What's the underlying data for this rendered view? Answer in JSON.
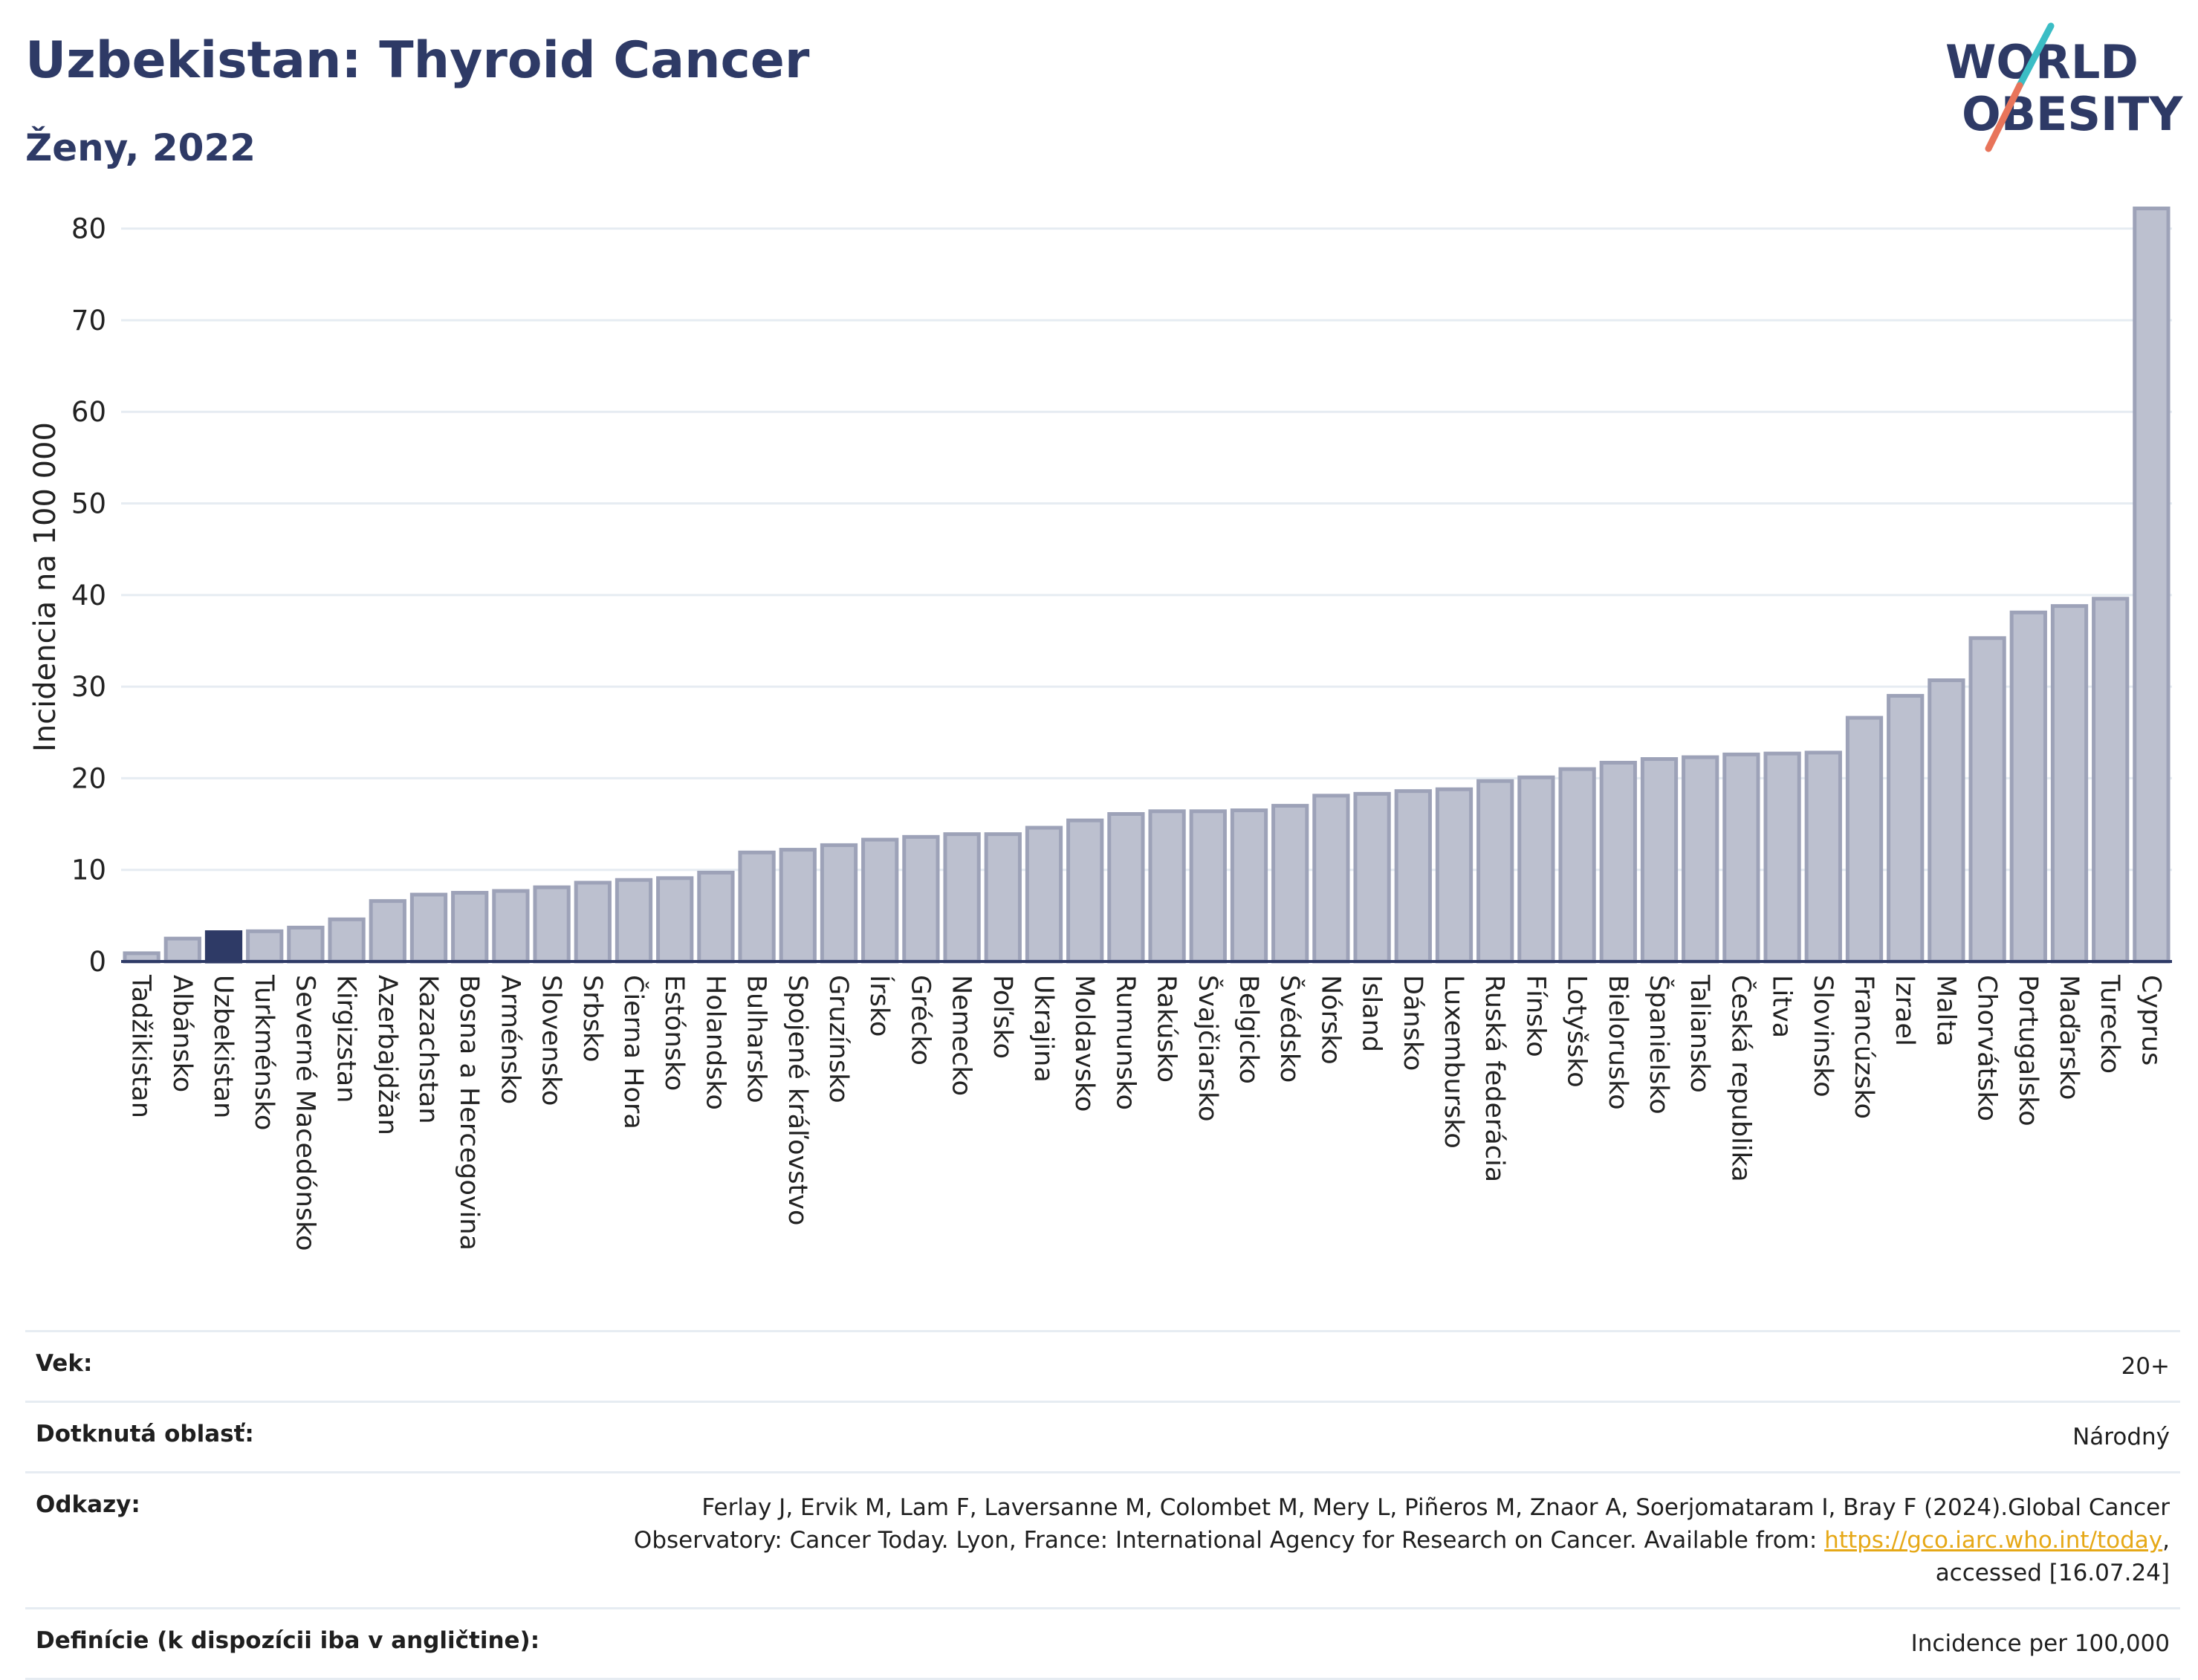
{
  "header": {
    "title": "Uzbekistan: Thyroid Cancer",
    "subtitle": "Ženy, 2022"
  },
  "logo": {
    "line1": "WORLD",
    "line2": "OBESITY"
  },
  "colors": {
    "title": "#2e3a66",
    "bar_fill": "#bcc0cf",
    "bar_stroke": "#9da2b8",
    "bar_highlight": "#2e3a66",
    "axis": "#2e3a66",
    "grid": "#e6ecf2",
    "link": "#e6a817",
    "logo_text": "#2e3a66",
    "logo_slash_teal": "#3bbdc5",
    "logo_slash_coral": "#e8745a"
  },
  "chart_data": {
    "type": "bar",
    "ylabel": "Incidencia na 100 000",
    "xlabel": "",
    "ylim": [
      0,
      85
    ],
    "yticks": [
      0,
      10,
      20,
      30,
      40,
      50,
      60,
      70,
      80
    ],
    "grid": true,
    "highlight": "Uzbekistan",
    "categories": [
      "Tadžikistan",
      "Albánsko",
      "Uzbekistan",
      "Turkménsko",
      "Severné Macedónsko",
      "Kirgizstan",
      "Azerbajdžan",
      "Kazachstan",
      "Bosna a Hercegovina",
      "Arménsko",
      "Slovensko",
      "Srbsko",
      "Čierna Hora",
      "Estónsko",
      "Holandsko",
      "Bulharsko",
      "Spojené kráľovstvo",
      "Gruzínsko",
      "Írsko",
      "Grécko",
      "Nemecko",
      "Poľsko",
      "Ukrajina",
      "Moldavsko",
      "Rumunsko",
      "Rakúsko",
      "Švajčiarsko",
      "Belgicko",
      "Švédsko",
      "Nórsko",
      "Island",
      "Dánsko",
      "Luxembursko",
      "Ruská federácia",
      "Fínsko",
      "Lotyšsko",
      "Bielorusko",
      "Španielsko",
      "Taliansko",
      "Česká republika",
      "Litva",
      "Slovinsko",
      "Francúzsko",
      "Izrael",
      "Malta",
      "Chorvátsko",
      "Portugalsko",
      "Maďarsko",
      "Turecko",
      "Cyprus"
    ],
    "values": [
      0.9,
      2.5,
      3.2,
      3.3,
      3.7,
      4.6,
      6.6,
      7.3,
      7.5,
      7.7,
      8.1,
      8.6,
      8.9,
      9.1,
      9.7,
      11.9,
      12.2,
      12.7,
      13.3,
      13.6,
      13.9,
      13.9,
      14.6,
      15.4,
      16.1,
      16.4,
      16.4,
      16.5,
      17.0,
      18.1,
      18.3,
      18.6,
      18.8,
      19.7,
      20.1,
      21.0,
      21.7,
      22.1,
      22.3,
      22.6,
      22.7,
      22.8,
      26.6,
      29.0,
      30.7,
      35.3,
      38.1,
      38.8,
      39.6,
      82.2
    ]
  },
  "info": {
    "age": {
      "label": "Vek:",
      "value": "20+"
    },
    "area": {
      "label": "Dotknutá oblasť:",
      "value": "Národný"
    },
    "refs": {
      "label": "Odkazy:",
      "text_before": "Ferlay J, Ervik M, Lam F, Laversanne M, Colombet M, Mery L, Piñeros M, Znaor A, Soerjomataram I, Bray F (2024).Global Cancer Observatory: Cancer Today. Lyon, France: International Agency for Research on Cancer. Available from: ",
      "link": "https://gco.iarc.who.int/today",
      "text_after": ", accessed [16.07.24]"
    },
    "definitions": {
      "label": "Definície (k dispozícii iba v angličtine):",
      "value": "Incidence per 100,000"
    }
  }
}
